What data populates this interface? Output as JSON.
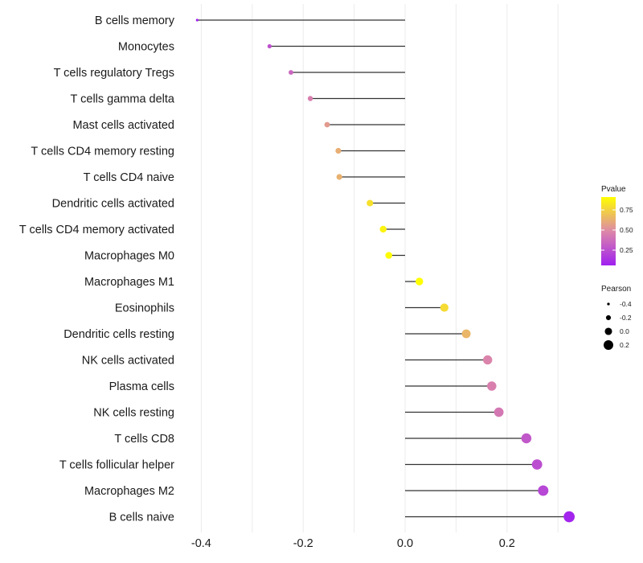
{
  "chart_data": {
    "type": "lollipop",
    "title": "",
    "xlabel": "",
    "ylabel": "",
    "xlim": [
      -0.42,
      0.34
    ],
    "x_ticks": [
      -0.4,
      -0.2,
      0.0,
      0.2
    ],
    "x_tick_labels": [
      "-0.4",
      "-0.2",
      "0.0",
      "0.2"
    ],
    "grid": true,
    "categories": [
      "B cells memory",
      "Monocytes",
      "T cells regulatory  Tregs ",
      "T cells gamma delta",
      "Mast cells activated",
      "T cells CD4 memory resting",
      "T cells CD4 naive",
      "Dendritic cells activated",
      "T cells CD4 memory activated",
      "Macrophages M0",
      "Macrophages M1",
      "Eosinophils",
      "Dendritic cells resting",
      "NK cells activated",
      "Plasma cells",
      "NK cells resting",
      "T cells CD8",
      "T cells follicular helper",
      "Macrophages M2",
      "B cells naive"
    ],
    "pearson": [
      -0.408,
      -0.266,
      -0.224,
      -0.186,
      -0.153,
      -0.131,
      -0.129,
      -0.069,
      -0.043,
      -0.032,
      0.028,
      0.077,
      0.12,
      0.162,
      0.17,
      0.184,
      0.238,
      0.259,
      0.271,
      0.322
    ],
    "pvalue": [
      0.02,
      0.26,
      0.35,
      0.45,
      0.55,
      0.62,
      0.63,
      0.8,
      0.87,
      0.9,
      0.91,
      0.78,
      0.65,
      0.47,
      0.45,
      0.42,
      0.29,
      0.25,
      0.22,
      0.08
    ],
    "legend_color": {
      "title": "Pvalue",
      "ticks": [
        0.25,
        0.5,
        0.75
      ],
      "tick_labels": [
        "0.25",
        "0.50",
        "0.75"
      ],
      "range": [
        0.06,
        0.91
      ],
      "low_color": "#a020f0",
      "mid_color": "#dd88a8",
      "high_color": "#ffff00",
      "placement": "right"
    },
    "legend_size": {
      "title": "Pearson",
      "values": [
        -0.4,
        -0.2,
        0.0,
        0.2
      ],
      "labels": [
        "-0.4",
        "-0.2",
        "0.0",
        "0.2"
      ],
      "placement": "right"
    }
  }
}
